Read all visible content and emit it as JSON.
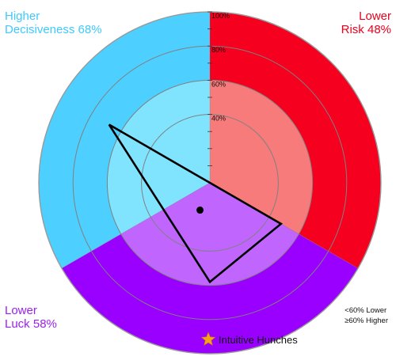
{
  "colors": {
    "left_solid": "#4dcfff",
    "left_light": "#80e4ff",
    "right_solid": "#f5001f",
    "right_light": "#f77b7b",
    "bottom_solid": "#9a00ff",
    "bottom_light": "#c066ff",
    "left_label": "#3fc9ff",
    "right_label": "#e8001c",
    "bottom_label": "#9b1ff0",
    "star": "#f7a21c",
    "triangle": "#000000",
    "ring_line": "#808080"
  },
  "chart_data": {
    "type": "radar",
    "rings": [
      40,
      60,
      80,
      100
    ],
    "ring_labels": [
      "40%",
      "60%",
      "80%",
      "100%"
    ],
    "threshold": 60,
    "axes": [
      {
        "key": "left",
        "label_line1": "Higher",
        "label_line2": "Decisiveness 68%",
        "value": 68
      },
      {
        "key": "right",
        "label_line1": "Lower",
        "label_line2": "Risk 48%",
        "value": 48
      },
      {
        "key": "bottom",
        "label_line1": "Lower",
        "label_line2": "Luck 58%",
        "value": 58
      }
    ],
    "legend": [
      "<60% Lower",
      "≥60% Higher"
    ],
    "marker_label": "Intuitive Hunches",
    "marker_icon": "star-icon"
  }
}
